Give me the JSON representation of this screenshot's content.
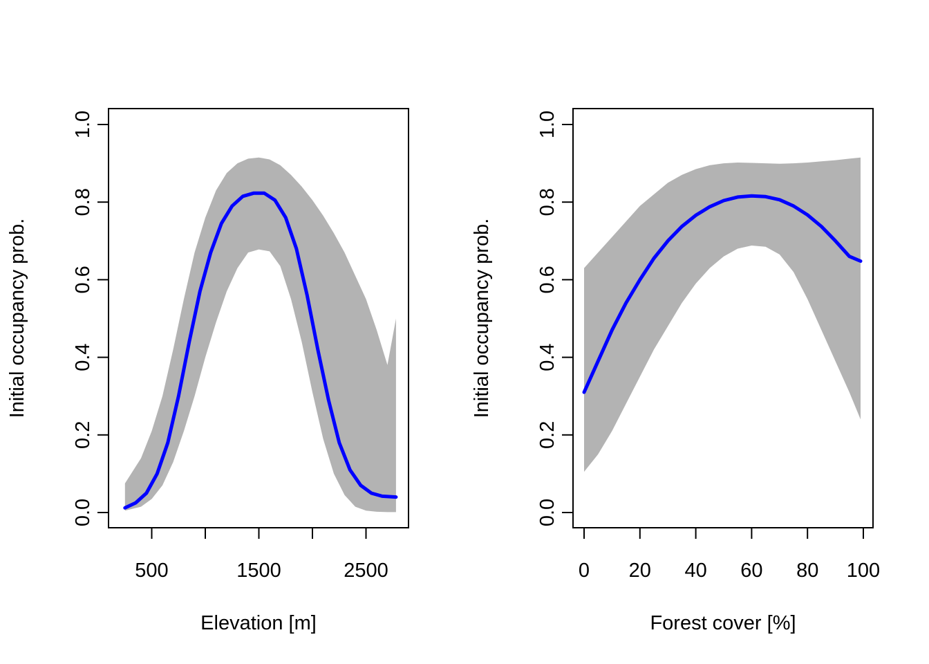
{
  "chart_data": [
    {
      "type": "area",
      "title": "",
      "xlabel": "Elevation [m]",
      "ylabel": "Initial occupancy prob.",
      "xlim": [
        200,
        2800
      ],
      "ylim": [
        0.0,
        1.0
      ],
      "x_ticks": [
        500,
        1000,
        1500,
        2000,
        2500
      ],
      "x_tick_labels": [
        "500",
        "",
        "1500",
        "",
        "2500"
      ],
      "y_ticks": [
        0.0,
        0.2,
        0.4,
        0.6,
        0.8,
        1.0
      ],
      "y_tick_labels": [
        "0.0",
        "0.2",
        "0.4",
        "0.6",
        "0.8",
        "1.0"
      ],
      "grid": false,
      "colors": {
        "line": "#0000ff",
        "band": "#b3b3b3"
      },
      "band": {
        "x": [
          250,
          400,
          500,
          600,
          700,
          800,
          900,
          1000,
          1100,
          1200,
          1300,
          1400,
          1500,
          1600,
          1700,
          1800,
          1900,
          2000,
          2100,
          2200,
          2300,
          2400,
          2500,
          2600,
          2700,
          2780
        ],
        "lower": [
          0.005,
          0.015,
          0.035,
          0.07,
          0.13,
          0.21,
          0.3,
          0.4,
          0.49,
          0.57,
          0.63,
          0.67,
          0.678,
          0.673,
          0.635,
          0.55,
          0.44,
          0.31,
          0.19,
          0.1,
          0.045,
          0.015,
          0.005,
          0.002,
          0.001,
          0.001
        ],
        "upper": [
          0.075,
          0.14,
          0.21,
          0.3,
          0.42,
          0.55,
          0.67,
          0.76,
          0.83,
          0.875,
          0.9,
          0.912,
          0.915,
          0.91,
          0.895,
          0.87,
          0.84,
          0.805,
          0.765,
          0.72,
          0.67,
          0.61,
          0.55,
          0.47,
          0.38,
          0.5
        ]
      },
      "series": [
        {
          "x": [
            250,
            350,
            450,
            550,
            650,
            750,
            850,
            950,
            1050,
            1150,
            1250,
            1350,
            1450,
            1550,
            1650,
            1750,
            1850,
            1950,
            2050,
            2150,
            2250,
            2350,
            2450,
            2550,
            2650,
            2780
          ],
          "values": [
            0.012,
            0.025,
            0.05,
            0.1,
            0.18,
            0.3,
            0.44,
            0.57,
            0.67,
            0.745,
            0.79,
            0.815,
            0.823,
            0.823,
            0.805,
            0.76,
            0.68,
            0.56,
            0.42,
            0.29,
            0.18,
            0.11,
            0.07,
            0.05,
            0.042,
            0.04
          ]
        }
      ]
    },
    {
      "type": "area",
      "title": "",
      "xlabel": "Forest cover [%]",
      "ylabel": "Initial occupancy prob.",
      "xlim": [
        0,
        100
      ],
      "ylim": [
        0.0,
        1.0
      ],
      "x_ticks": [
        0,
        20,
        40,
        60,
        80,
        100
      ],
      "x_tick_labels": [
        "0",
        "20",
        "40",
        "60",
        "80",
        "100"
      ],
      "y_ticks": [
        0.0,
        0.2,
        0.4,
        0.6,
        0.8,
        1.0
      ],
      "y_tick_labels": [
        "0.0",
        "0.2",
        "0.4",
        "0.6",
        "0.8",
        "1.0"
      ],
      "grid": false,
      "colors": {
        "line": "#0000ff",
        "band": "#b3b3b3"
      },
      "band": {
        "x": [
          0,
          5,
          10,
          15,
          20,
          25,
          30,
          35,
          40,
          45,
          50,
          55,
          60,
          65,
          70,
          75,
          80,
          85,
          90,
          95,
          99
        ],
        "lower": [
          0.105,
          0.15,
          0.21,
          0.28,
          0.35,
          0.42,
          0.48,
          0.54,
          0.59,
          0.63,
          0.66,
          0.68,
          0.688,
          0.685,
          0.665,
          0.62,
          0.55,
          0.47,
          0.39,
          0.31,
          0.24
        ],
        "upper": [
          0.63,
          0.67,
          0.71,
          0.75,
          0.79,
          0.82,
          0.85,
          0.87,
          0.885,
          0.895,
          0.9,
          0.902,
          0.901,
          0.9,
          0.899,
          0.9,
          0.902,
          0.905,
          0.908,
          0.912,
          0.915
        ]
      },
      "series": [
        {
          "x": [
            0,
            5,
            10,
            15,
            20,
            25,
            30,
            35,
            40,
            45,
            50,
            55,
            60,
            65,
            70,
            75,
            80,
            85,
            90,
            95,
            99
          ],
          "values": [
            0.31,
            0.39,
            0.47,
            0.54,
            0.6,
            0.655,
            0.7,
            0.737,
            0.766,
            0.788,
            0.804,
            0.813,
            0.816,
            0.814,
            0.806,
            0.79,
            0.767,
            0.737,
            0.7,
            0.66,
            0.648
          ]
        }
      ]
    }
  ]
}
